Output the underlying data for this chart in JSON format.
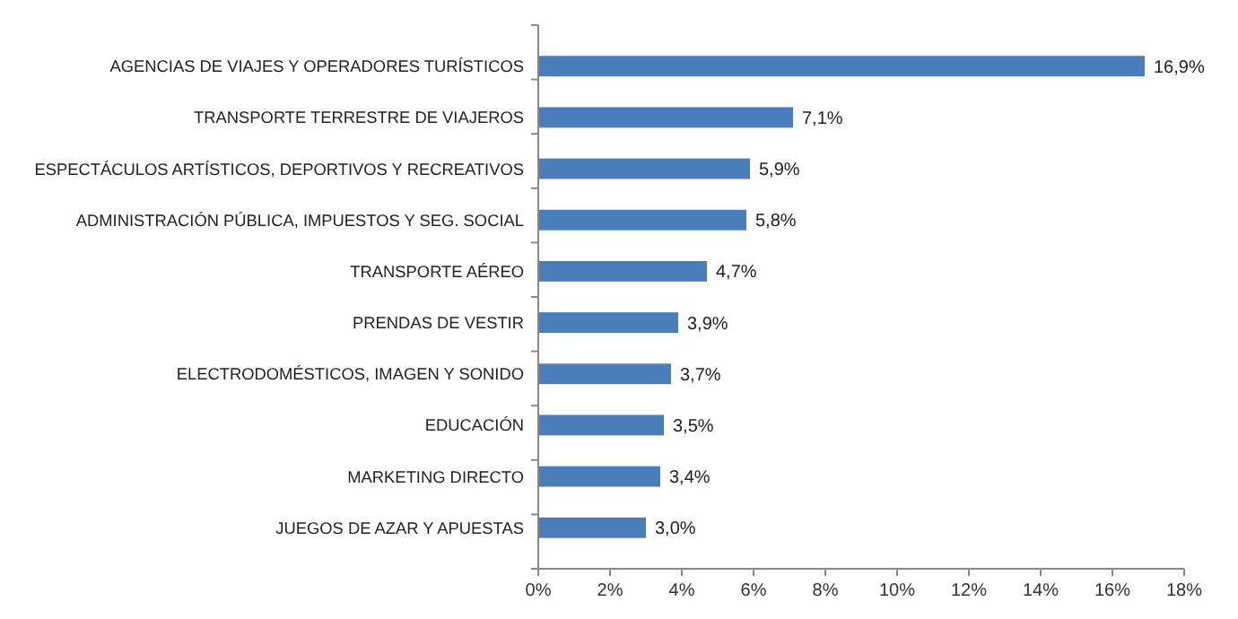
{
  "chart_data": {
    "type": "bar",
    "orientation": "horizontal",
    "categories": [
      "AGENCIAS DE VIAJES Y OPERADORES TURÍSTICOS",
      "TRANSPORTE TERRESTRE DE VIAJEROS",
      "ESPECTÁCULOS ARTÍSTICOS, DEPORTIVOS Y RECREATIVOS",
      "ADMINISTRACIÓN PÚBLICA, IMPUESTOS Y SEG. SOCIAL",
      "TRANSPORTE AÉREO",
      "PRENDAS DE VESTIR",
      "ELECTRODOMÉSTICOS,  IMAGEN Y SONIDO",
      "EDUCACIÓN",
      "MARKETING DIRECTO",
      "JUEGOS DE AZAR Y APUESTAS"
    ],
    "values": [
      16.9,
      7.1,
      5.9,
      5.8,
      4.7,
      3.9,
      3.7,
      3.5,
      3.4,
      3.0
    ],
    "value_labels": [
      "16,9%",
      "7,1%",
      "5,9%",
      "5,8%",
      "4,7%",
      "3,9%",
      "3,7%",
      "3,5%",
      "3,4%",
      "3,0%"
    ],
    "color": "#4a7ebb",
    "xlim": [
      0,
      18
    ],
    "xticks": [
      {
        "value": 0,
        "label": "0%"
      },
      {
        "value": 2,
        "label": "2%"
      },
      {
        "value": 4,
        "label": "4%"
      },
      {
        "value": 6,
        "label": "6%"
      },
      {
        "value": 8,
        "label": "8%"
      },
      {
        "value": 10,
        "label": "10%"
      },
      {
        "value": 12,
        "label": "12%"
      },
      {
        "value": 14,
        "label": "14%"
      },
      {
        "value": 16,
        "label": "16%"
      },
      {
        "value": 18,
        "label": "18%"
      }
    ]
  }
}
